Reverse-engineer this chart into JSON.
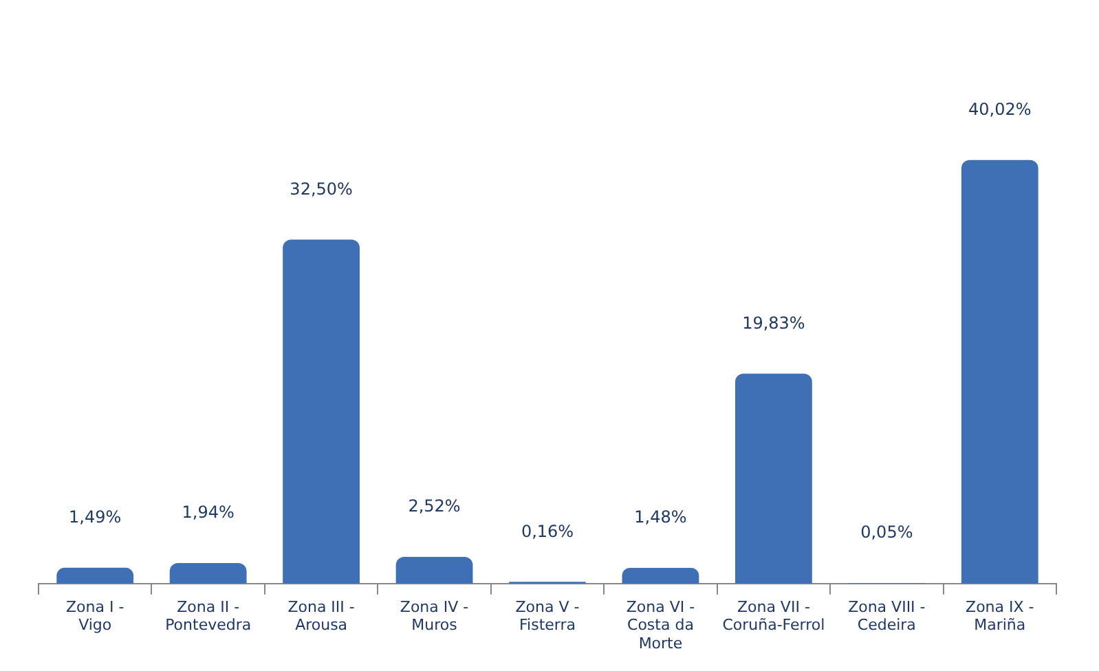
{
  "chart_data": {
    "type": "bar",
    "categories": [
      "Zona I - Vigo",
      "Zona II - Pontevedra",
      "Zona III - Arousa",
      "Zona IV - Muros",
      "Zona V - Fisterra",
      "Zona VI - Costa da Morte",
      "Zona VII - Coruña-Ferrol",
      "Zona VIII - Cedeira",
      "Zona IX - Mariña"
    ],
    "values": [
      1.49,
      1.94,
      32.5,
      2.52,
      0.16,
      1.48,
      19.83,
      0.05,
      40.02
    ],
    "value_labels": [
      "1,49%",
      "1,94%",
      "32,50%",
      "2,52%",
      "0,16%",
      "1,48%",
      "19,83%",
      "0,05%",
      "40,02%"
    ],
    "color": "#3f6fb5",
    "grid": false,
    "legend": false
  }
}
